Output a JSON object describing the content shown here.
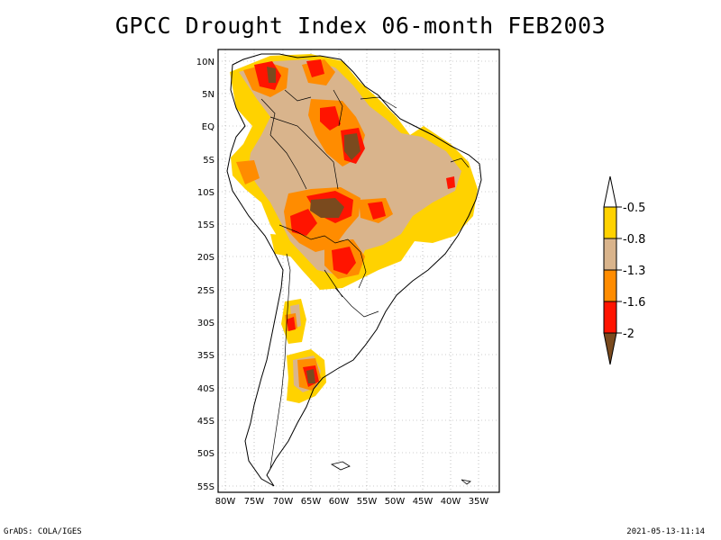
{
  "title": "GPCC Drought Index 06-month FEB2003",
  "map": {
    "lat_labels": [
      "10N",
      "5N",
      "EQ",
      "5S",
      "10S",
      "15S",
      "20S",
      "25S",
      "30S",
      "35S",
      "40S",
      "45S",
      "50S",
      "55S"
    ],
    "lon_labels": [
      "80W",
      "75W",
      "70W",
      "65W",
      "60W",
      "55W",
      "50W",
      "45W",
      "40W",
      "35W"
    ]
  },
  "colorbar": {
    "levels": [
      "-0.5",
      "-0.8",
      "-1.3",
      "-1.6",
      "-2"
    ],
    "colors": [
      "#ffffff",
      "#ffd200",
      "#d9b48c",
      "#ff8c00",
      "#ff1400",
      "#7a4a1e"
    ]
  },
  "footer": {
    "left": "GrADS: COLA/IGES",
    "right": "2021-05-13-11:14"
  }
}
